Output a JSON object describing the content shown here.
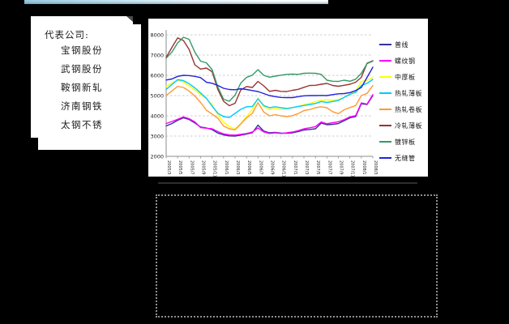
{
  "background": "#000000",
  "top_strip": {
    "colors": [
      "#9ccbe0",
      "#ffffff"
    ]
  },
  "note_box": {
    "title": "代表公司:",
    "companies": [
      "宝钢股份",
      "武钢股份",
      "鞍钢新轧",
      "济南钢铁",
      "太钢不锈"
    ]
  },
  "chart_data": {
    "type": "line",
    "title": "",
    "xlabel": "",
    "ylabel": "",
    "ylim": [
      2000,
      8000
    ],
    "y_ticks": [
      2000,
      3000,
      4000,
      5000,
      6000,
      7000,
      8000
    ],
    "grid": "horizontal-dashed",
    "legend_position": "right",
    "x_unit": "month",
    "x_start": "2005/3",
    "x_end": "2008/3",
    "x_tick_labels": [
      "2005/3",
      "2005/5",
      "2005/7",
      "2005/9",
      "2005/11",
      "2006/1",
      "2006/3",
      "2006/5",
      "2006/7",
      "2006/9",
      "2006/11",
      "2007/1",
      "2007/3",
      "2007/5",
      "2007/7",
      "2007/9",
      "2007/11",
      "2008/1",
      "2008/3"
    ],
    "series": [
      {
        "name": "普线",
        "color": "#333399",
        "values": [
          3500,
          3620,
          3780,
          3900,
          3820,
          3650,
          3450,
          3400,
          3320,
          3150,
          3060,
          3010,
          3000,
          3050,
          3100,
          3160,
          3540,
          3250,
          3160,
          3180,
          3150,
          3140,
          3160,
          3220,
          3300,
          3330,
          3360,
          3640,
          3560,
          3580,
          3620,
          3760,
          3900,
          3960,
          4600,
          4560,
          5000
        ]
      },
      {
        "name": "螺纹钢",
        "color": "#FF00FF",
        "values": [
          3620,
          3720,
          3830,
          3950,
          3860,
          3700,
          3420,
          3390,
          3360,
          3220,
          3110,
          3060,
          3050,
          3090,
          3130,
          3200,
          3400,
          3210,
          3130,
          3160,
          3130,
          3160,
          3200,
          3270,
          3360,
          3410,
          3470,
          3700,
          3610,
          3660,
          3710,
          3810,
          3950,
          4010,
          4640,
          4580,
          5050
        ]
      },
      {
        "name": "中厚板",
        "color": "#FFFF00",
        "values": [
          5450,
          5620,
          5750,
          5680,
          5480,
          5280,
          5060,
          4850,
          4550,
          4050,
          3680,
          3480,
          3350,
          3620,
          3960,
          4320,
          4880,
          4460,
          4310,
          4360,
          4310,
          4350,
          4400,
          4460,
          4560,
          4610,
          4700,
          4760,
          4800,
          4760,
          4810,
          4910,
          5100,
          5210,
          5700,
          5760,
          5900
        ]
      },
      {
        "name": "热轧薄板",
        "color": "#00CCFF",
        "values": [
          5300,
          5550,
          5790,
          5740,
          5590,
          5380,
          5130,
          4870,
          4480,
          4130,
          3960,
          3920,
          4120,
          4320,
          4450,
          4460,
          4840,
          4510,
          4400,
          4450,
          4400,
          4360,
          4410,
          4460,
          4510,
          4560,
          4610,
          4710,
          4660,
          4710,
          4760,
          4910,
          5060,
          5160,
          5500,
          5610,
          5800
        ]
      },
      {
        "name": "热轧卷板",
        "color": "#FF9933",
        "values": [
          5000,
          5230,
          5460,
          5400,
          5230,
          4980,
          4660,
          4280,
          4090,
          3880,
          3500,
          3360,
          3310,
          3600,
          3900,
          4120,
          4650,
          4190,
          4000,
          4060,
          4000,
          3960,
          4010,
          4110,
          4260,
          4310,
          4400,
          4450,
          4400,
          4210,
          4110,
          4300,
          4410,
          4510,
          5000,
          5110,
          5500
        ]
      },
      {
        "name": "冷轧薄板",
        "color": "#993333",
        "values": [
          6880,
          7380,
          7850,
          7720,
          7280,
          6520,
          6310,
          6360,
          6180,
          5300,
          4720,
          4500,
          4620,
          5280,
          5450,
          5400,
          5700,
          5480,
          5210,
          5260,
          5210,
          5200,
          5260,
          5310,
          5410,
          5500,
          5510,
          5560,
          5600,
          5500,
          5460,
          5510,
          5560,
          5660,
          5900,
          6600,
          6720
        ]
      },
      {
        "name": "镀锌板",
        "color": "#339966",
        "values": [
          6850,
          7150,
          7600,
          7880,
          7780,
          7150,
          6700,
          6620,
          6280,
          5420,
          4820,
          4720,
          5020,
          5620,
          5900,
          6010,
          6280,
          6000,
          5910,
          5960,
          6010,
          6050,
          6060,
          6050,
          6100,
          6110,
          6100,
          6050,
          5760,
          5710,
          5700,
          5760,
          5710,
          5810,
          6100,
          6580,
          6700
        ]
      },
      {
        "name": "无缝管",
        "color": "#2222DD",
        "values": [
          5770,
          5820,
          5950,
          6000,
          5990,
          5950,
          5890,
          5660,
          5610,
          5500,
          5360,
          5300,
          5290,
          5340,
          5300,
          5250,
          5200,
          5100,
          5000,
          4950,
          4910,
          4900,
          4900,
          4950,
          4990,
          5000,
          5000,
          5010,
          5000,
          5050,
          5090,
          5100,
          5150,
          5250,
          5400,
          5900,
          6400
        ]
      }
    ]
  }
}
